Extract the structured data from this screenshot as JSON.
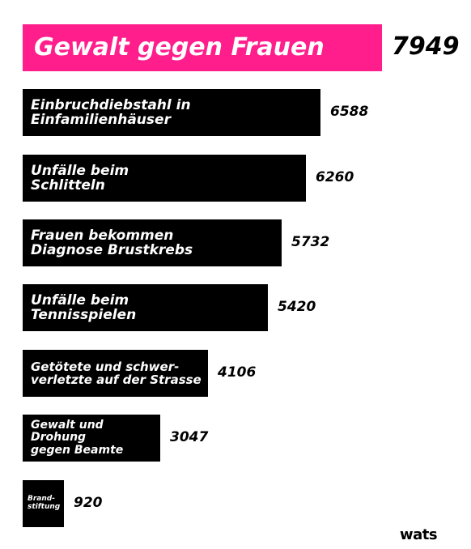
{
  "chart_data": {
    "type": "bar",
    "orientation": "horizontal",
    "categories": [
      "Gewalt gegen Frauen",
      "Einbruchdiebstahl in\nEinfamilienhäuser",
      "Unfälle beim\nSchlitteln",
      "Frauen bekommen\nDiagnose Brustkrebs",
      "Unfälle beim\nTennisspielen",
      "Getötete und schwer-\nverletzte auf der Strasse",
      "Gewalt und Drohung\ngegen Beamte",
      "Brand-\nstiftung"
    ],
    "values": [
      7949,
      6588,
      6260,
      5732,
      5420,
      4106,
      3047,
      920
    ],
    "value_labels": [
      "7949",
      "6588",
      "6260",
      "5732",
      "5420",
      "4106",
      "3047",
      "920"
    ],
    "colors": {
      "highlight": "#ff1e8c",
      "bar": "#000000",
      "label": "#ffffff",
      "value": "#000000"
    },
    "highlight_index": 0,
    "grid": false,
    "legend": "none"
  },
  "brand": {
    "logo_text": "wats"
  }
}
